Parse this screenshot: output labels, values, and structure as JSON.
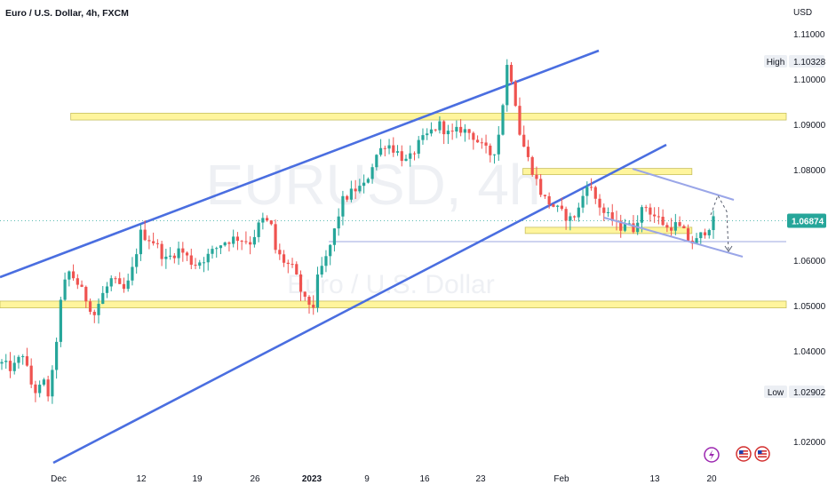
{
  "header": {
    "symbol_title": "Euro / U.S. Dollar, 4h, FXCM"
  },
  "watermark": {
    "ticker": "EURUSD, 4h",
    "name": "Euro / U.S. Dollar"
  },
  "colors": {
    "up": "#26a69a",
    "down": "#ef5350",
    "channel": "#4a6ee0",
    "zone_fill": "#fff59d",
    "zone_border": "#c8c060",
    "price_line": "#26a69a",
    "support_line": "#7b8ad6",
    "wedge": "#9aa6e8"
  },
  "chart_data": {
    "type": "candlestick",
    "title": "Euro / U.S. Dollar, 4h, FXCM",
    "price_unit": "USD",
    "ylim": [
      1.0145,
      1.1175
    ],
    "y_ticks": [
      "1.11000",
      "1.10000",
      "1.09000",
      "1.08000",
      "1.07000",
      "1.06000",
      "1.05000",
      "1.04000",
      "1.03000",
      "1.02000"
    ],
    "x_ticks": [
      "Dec",
      "12",
      "19",
      "26",
      "2023",
      "9",
      "16",
      "23",
      "Feb",
      "13",
      "20"
    ],
    "last_price": "1.06874",
    "high_label": "High",
    "high_value": "1.10328",
    "low_label": "Low",
    "low_value": "1.02902",
    "zones": [
      {
        "from": 0.09,
        "to": 1.0,
        "low": 1.091,
        "high": 1.0925
      },
      {
        "from": 0.0,
        "to": 1.0,
        "low": 1.0495,
        "high": 1.051
      },
      {
        "from": 0.665,
        "to": 0.88,
        "low": 1.0793,
        "high": 1.0803
      },
      {
        "from": 0.668,
        "to": 0.88,
        "low": 1.066,
        "high": 1.0673
      }
    ],
    "anchors": [
      [
        0.0,
        1.0372
      ],
      [
        0.015,
        1.036
      ],
      [
        0.03,
        1.0395
      ],
      [
        0.04,
        1.033
      ],
      [
        0.05,
        1.0305
      ],
      [
        0.058,
        1.0335
      ],
      [
        0.067,
        1.0295
      ],
      [
        0.075,
        1.04
      ],
      [
        0.085,
        1.0535
      ],
      [
        0.095,
        1.0575
      ],
      [
        0.105,
        1.0553
      ],
      [
        0.12,
        1.051
      ],
      [
        0.13,
        1.048
      ],
      [
        0.14,
        1.052
      ],
      [
        0.155,
        1.056
      ],
      [
        0.17,
        1.053
      ],
      [
        0.18,
        1.0555
      ],
      [
        0.195,
        1.066
      ],
      [
        0.215,
        1.064
      ],
      [
        0.23,
        1.06
      ],
      [
        0.25,
        1.0625
      ],
      [
        0.27,
        1.059
      ],
      [
        0.29,
        1.061
      ],
      [
        0.31,
        1.064
      ],
      [
        0.33,
        1.065
      ],
      [
        0.35,
        1.064
      ],
      [
        0.365,
        1.069
      ],
      [
        0.378,
        1.068
      ],
      [
        0.385,
        1.062
      ],
      [
        0.395,
        1.06
      ],
      [
        0.41,
        1.058
      ],
      [
        0.425,
        1.051
      ],
      [
        0.438,
        1.05
      ],
      [
        0.445,
        1.057
      ],
      [
        0.455,
        1.06
      ],
      [
        0.465,
        1.065
      ],
      [
        0.478,
        1.073
      ],
      [
        0.495,
        1.0755
      ],
      [
        0.51,
        1.0765
      ],
      [
        0.525,
        1.083
      ],
      [
        0.54,
        1.086
      ],
      [
        0.555,
        1.084
      ],
      [
        0.57,
        1.0815
      ],
      [
        0.585,
        1.0855
      ],
      [
        0.6,
        1.088
      ],
      [
        0.615,
        1.09
      ],
      [
        0.63,
        1.0875
      ],
      [
        0.645,
        1.089
      ],
      [
        0.66,
        1.088
      ],
      [
        0.675,
        1.085
      ],
      [
        0.69,
        1.083
      ],
      [
        0.7,
        1.089
      ],
      [
        0.71,
        1.103
      ],
      [
        0.718,
        1.0995
      ],
      [
        0.728,
        1.088
      ],
      [
        0.738,
        1.083
      ],
      [
        0.748,
        1.079
      ],
      [
        0.76,
        1.074
      ],
      [
        0.775,
        1.072
      ],
      [
        0.79,
        1.07
      ],
      [
        0.8,
        1.069
      ],
      [
        0.81,
        1.071
      ],
      [
        0.823,
        1.0775
      ],
      [
        0.833,
        1.074
      ],
      [
        0.848,
        1.07
      ],
      [
        0.858,
        1.069
      ],
      [
        0.868,
        1.067
      ],
      [
        0.878,
        1.069
      ],
      [
        0.885,
        1.066
      ],
      [
        0.895,
        1.07
      ],
      [
        0.905,
        1.072
      ],
      [
        0.915,
        1.07
      ],
      [
        0.925,
        1.069
      ],
      [
        0.935,
        1.067
      ],
      [
        0.945,
        1.068
      ],
      [
        0.957,
        1.0665
      ],
      [
        0.967,
        1.064
      ],
      [
        0.975,
        1.064
      ],
      [
        0.985,
        1.066
      ],
      [
        1.0,
        1.0687
      ]
    ]
  },
  "badges": {
    "flash_icon": "lightning-icon",
    "flag_icon": "us-flag-icon"
  }
}
